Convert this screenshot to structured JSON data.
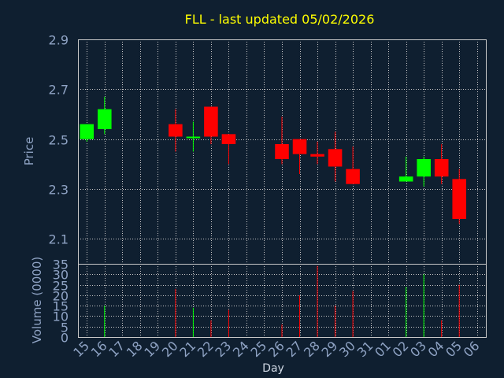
{
  "chart_data": {
    "type": "candlestick",
    "title": "FLL -  last updated 05/02/2026",
    "xlabel": "Day",
    "x_ticks": [
      "15",
      "16",
      "17",
      "18",
      "19",
      "20",
      "21",
      "22",
      "23",
      "24",
      "25",
      "26",
      "27",
      "28",
      "29",
      "30",
      "31",
      "01",
      "02",
      "03",
      "04",
      "05",
      "06"
    ],
    "colors": {
      "up": "#00ff00",
      "down": "#ff0000",
      "background": "#0f1f30",
      "grid": "#c8c8c8",
      "title": "#ffff00",
      "axis_text": "#8fa3c4"
    },
    "price_panel": {
      "ylabel": "Price",
      "ylim": [
        2.0,
        2.9
      ],
      "y_ticks": [
        "2.1",
        "2.3",
        "2.5",
        "2.7",
        "2.9"
      ],
      "candles": [
        {
          "day": "15",
          "open": 2.5,
          "high": 2.56,
          "low": 2.49,
          "close": 2.56
        },
        {
          "day": "16",
          "open": 2.54,
          "high": 2.67,
          "low": 2.52,
          "close": 2.62
        },
        {
          "day": "20",
          "open": 2.56,
          "high": 2.62,
          "low": 2.45,
          "close": 2.51
        },
        {
          "day": "21",
          "open": 2.505,
          "high": 2.57,
          "low": 2.45,
          "close": 2.51
        },
        {
          "day": "22",
          "open": 2.63,
          "high": 2.63,
          "low": 2.48,
          "close": 2.51
        },
        {
          "day": "23",
          "open": 2.52,
          "high": 2.52,
          "low": 2.4,
          "close": 2.48
        },
        {
          "day": "26",
          "open": 2.48,
          "high": 2.59,
          "low": 2.4,
          "close": 2.42
        },
        {
          "day": "27",
          "open": 2.5,
          "high": 2.5,
          "low": 2.36,
          "close": 2.44
        },
        {
          "day": "28",
          "open": 2.44,
          "high": 2.49,
          "low": 2.4,
          "close": 2.43
        },
        {
          "day": "29",
          "open": 2.46,
          "high": 2.53,
          "low": 2.33,
          "close": 2.39
        },
        {
          "day": "30",
          "open": 2.38,
          "high": 2.47,
          "low": 2.32,
          "close": 2.32
        },
        {
          "day": "02",
          "open": 2.33,
          "high": 2.43,
          "low": 2.33,
          "close": 2.35
        },
        {
          "day": "03",
          "open": 2.35,
          "high": 2.43,
          "low": 2.31,
          "close": 2.42
        },
        {
          "day": "04",
          "open": 2.42,
          "high": 2.48,
          "low": 2.32,
          "close": 2.35
        },
        {
          "day": "05",
          "open": 2.34,
          "high": 2.38,
          "low": 2.16,
          "close": 2.18
        }
      ]
    },
    "volume_panel": {
      "ylabel": "Volume (0000)",
      "ylim": [
        0,
        35
      ],
      "y_ticks": [
        "0",
        "5",
        "10",
        "15",
        "20",
        "25",
        "30",
        "35"
      ],
      "bars": [
        {
          "day": "16",
          "value": 15,
          "color": "up"
        },
        {
          "day": "20",
          "value": 23,
          "color": "down"
        },
        {
          "day": "21",
          "value": 14,
          "color": "up"
        },
        {
          "day": "22",
          "value": 8,
          "color": "down"
        },
        {
          "day": "23",
          "value": 13,
          "color": "down"
        },
        {
          "day": "26",
          "value": 6,
          "color": "down"
        },
        {
          "day": "27",
          "value": 20,
          "color": "down"
        },
        {
          "day": "28",
          "value": 34,
          "color": "down"
        },
        {
          "day": "29",
          "value": 15,
          "color": "down"
        },
        {
          "day": "30",
          "value": 22,
          "color": "down"
        },
        {
          "day": "02",
          "value": 24,
          "color": "up"
        },
        {
          "day": "03",
          "value": 30,
          "color": "up"
        },
        {
          "day": "04",
          "value": 8,
          "color": "down"
        },
        {
          "day": "05",
          "value": 25,
          "color": "down"
        }
      ]
    }
  }
}
